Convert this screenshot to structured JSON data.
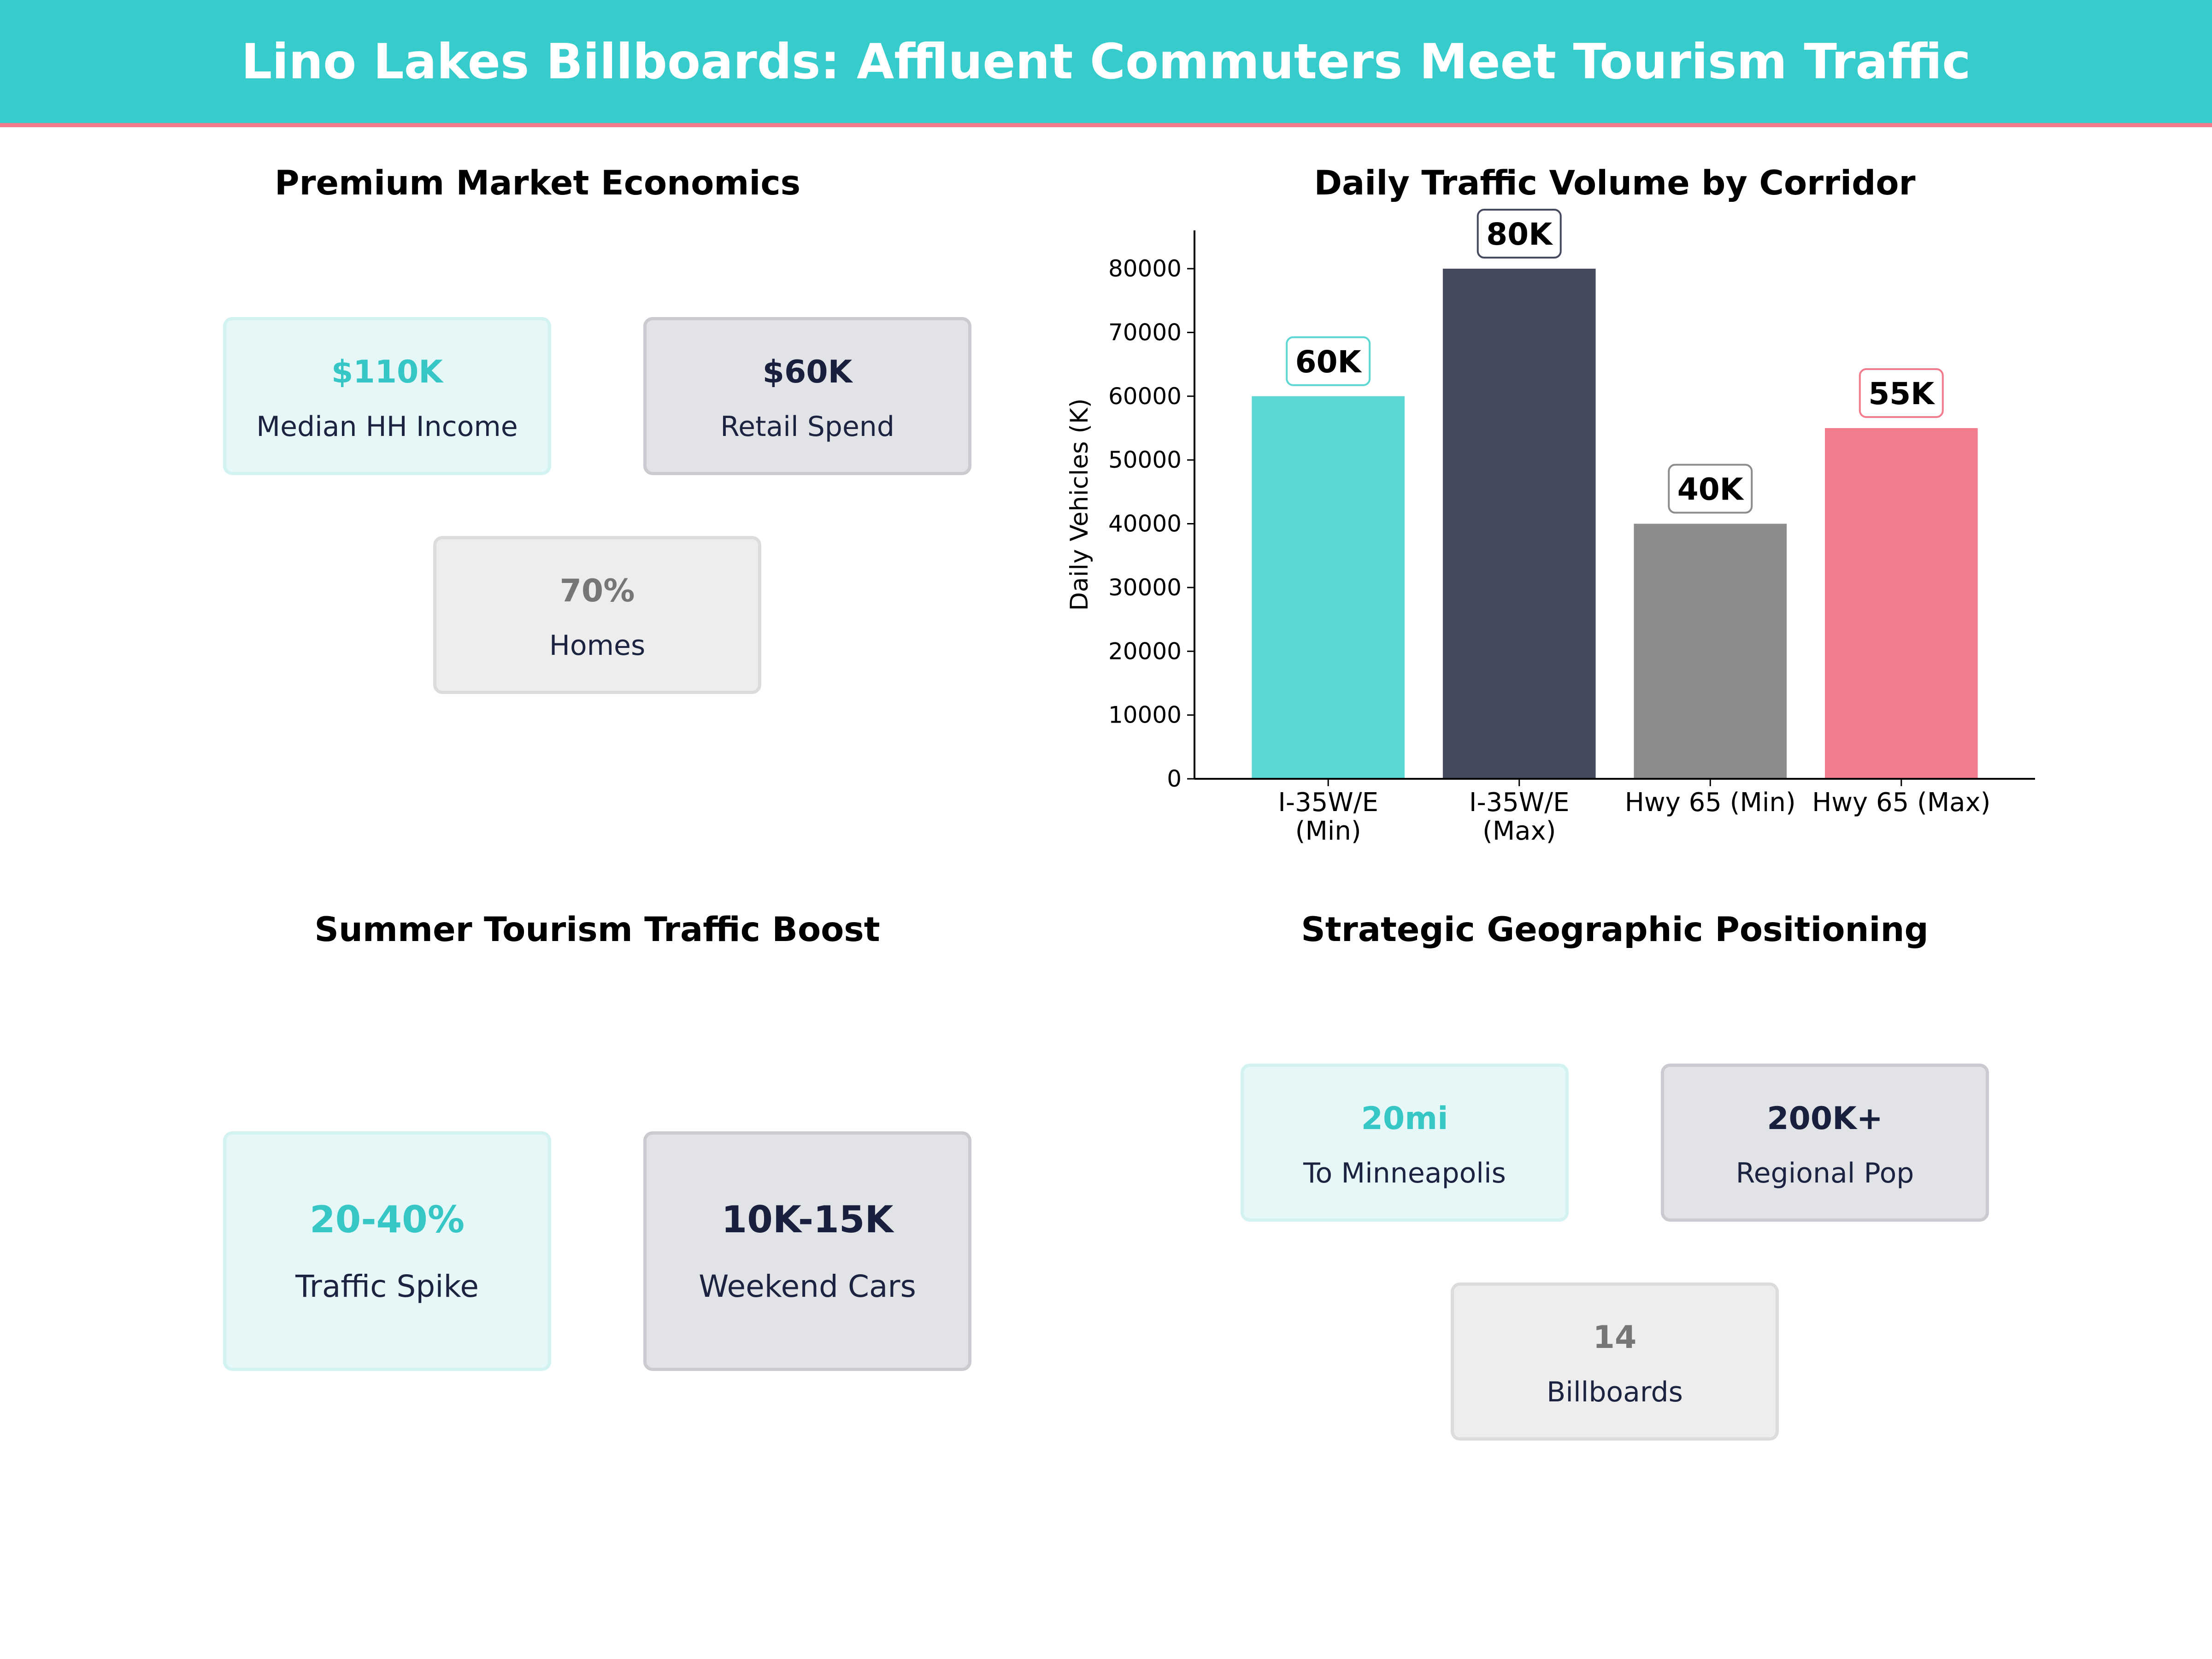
{
  "header": {
    "title": "Lino Lakes Billboards: Affluent Commuters Meet Tourism Traffic"
  },
  "colors": {
    "header_bg": "#36cccc",
    "header_accent": "#f27a8c",
    "teal": "#5dd7d3",
    "navy": "#454a5f",
    "gray": "#8c8c8c",
    "pink": "#f37b8e"
  },
  "panels": {
    "economics": {
      "title": "Premium Market Economics",
      "cards": [
        {
          "value": "$110K",
          "label": "Median HH Income",
          "style": "teal"
        },
        {
          "value": "$60K",
          "label": "Retail Spend",
          "style": "navy"
        },
        {
          "value": "70%",
          "label": "Homes",
          "style": "gray"
        }
      ]
    },
    "traffic": {
      "title": "Daily Traffic Volume by Corridor"
    },
    "tourism": {
      "title": "Summer Tourism Traffic Boost",
      "cards": [
        {
          "value": "20-40%",
          "label": "Traffic Spike",
          "style": "teal"
        },
        {
          "value": "10K-15K",
          "label": "Weekend Cars",
          "style": "navy"
        }
      ]
    },
    "geography": {
      "title": "Strategic Geographic Positioning",
      "cards": [
        {
          "value": "20mi",
          "label": "To Minneapolis",
          "style": "teal"
        },
        {
          "value": "200K+",
          "label": "Regional Pop",
          "style": "navy"
        },
        {
          "value": "14",
          "label": "Billboards",
          "style": "gray"
        }
      ]
    }
  },
  "chart_data": {
    "type": "bar",
    "title": "Daily Traffic Volume by Corridor",
    "xlabel": "",
    "ylabel": "Daily Vehicles (K)",
    "categories": [
      [
        "I-35W/E",
        "(Min)"
      ],
      [
        "I-35W/E",
        "(Max)"
      ],
      [
        "Hwy 65 (Min)"
      ],
      [
        "Hwy 65 (Max)"
      ]
    ],
    "values": [
      60000,
      80000,
      40000,
      55000
    ],
    "data_labels": [
      "60K",
      "80K",
      "40K",
      "55K"
    ],
    "bar_colors": [
      "#5dd7d3",
      "#454a5f",
      "#8c8c8c",
      "#f37b8e"
    ],
    "label_border_colors": [
      "#5dd7d3",
      "#454a5f",
      "#8c8c8c",
      "#f37b8e"
    ],
    "ylim": [
      0,
      86000
    ],
    "yticks": [
      0,
      10000,
      20000,
      30000,
      40000,
      50000,
      60000,
      70000,
      80000
    ],
    "grid": false,
    "legend": false
  }
}
